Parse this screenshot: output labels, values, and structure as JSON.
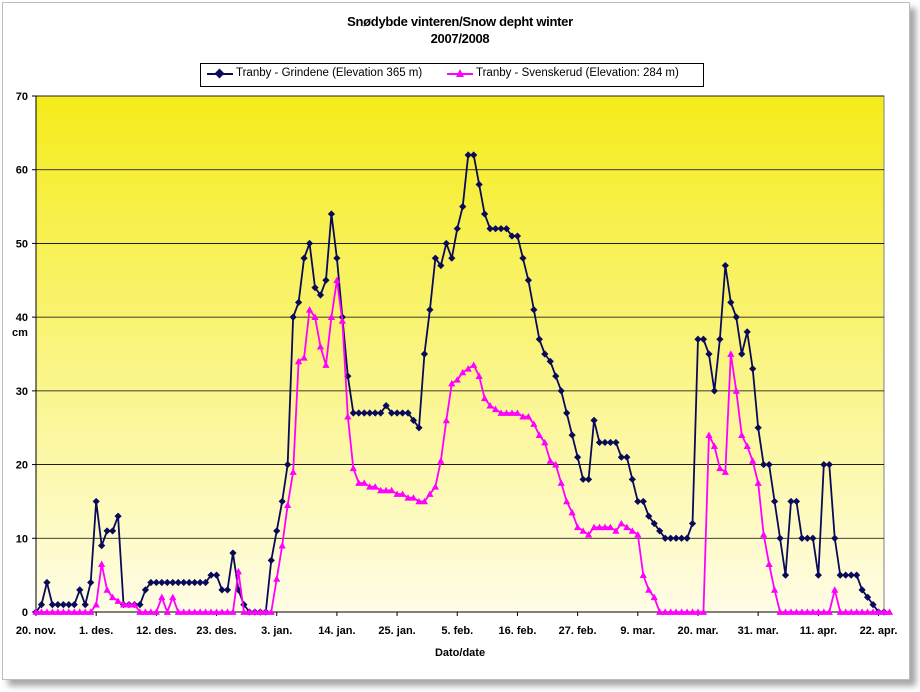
{
  "chart_data": {
    "type": "line",
    "title": "Snødybde vinteren/Snow depht winter",
    "subtitle": "2007/2008",
    "xlabel": "Dato/date",
    "ylabel": "cm",
    "ylim": [
      0,
      70
    ],
    "yticks": [
      0,
      10,
      20,
      30,
      40,
      50,
      60,
      70
    ],
    "xticks": [
      {
        "label": "20. nov.",
        "day": 0
      },
      {
        "label": "1. des.",
        "day": 11
      },
      {
        "label": "12. des.",
        "day": 22
      },
      {
        "label": "23. des.",
        "day": 33
      },
      {
        "label": "3. jan.",
        "day": 44
      },
      {
        "label": "14. jan.",
        "day": 55
      },
      {
        "label": "25. jan.",
        "day": 66
      },
      {
        "label": "5. feb.",
        "day": 77
      },
      {
        "label": "16. feb.",
        "day": 88
      },
      {
        "label": "27. feb.",
        "day": 99
      },
      {
        "label": "9. mar.",
        "day": 110
      },
      {
        "label": "20. mar.",
        "day": 121
      },
      {
        "label": "31. mar.",
        "day": 132
      },
      {
        "label": "11. apr.",
        "day": 143
      },
      {
        "label": "22. apr.",
        "day": 154
      }
    ],
    "grid": true,
    "legend_position": "top",
    "background_gradient": [
      "#f5ec1a",
      "#fffde6"
    ],
    "series": [
      {
        "name": "Tranby - Grindene (Elevation 365 m)",
        "color": "#0a0a5a",
        "marker": "diamond",
        "values": [
          0,
          1,
          4,
          1,
          1,
          1,
          1,
          1,
          3,
          1,
          4,
          15,
          9,
          11,
          11,
          13,
          1,
          1,
          1,
          1,
          3,
          4,
          4,
          4,
          4,
          4,
          4,
          4,
          4,
          4,
          4,
          4,
          5,
          5,
          3,
          3,
          8,
          3,
          1,
          0,
          0,
          0,
          0,
          7,
          11,
          15,
          20,
          40,
          42,
          48,
          50,
          44,
          43,
          45,
          54,
          48,
          40,
          32,
          27,
          27,
          27,
          27,
          27,
          27,
          28,
          27,
          27,
          27,
          27,
          26,
          25,
          35,
          41,
          48,
          47,
          50,
          48,
          52,
          55,
          62,
          62,
          58,
          54,
          52,
          52,
          52,
          52,
          51,
          51,
          48,
          45,
          41,
          37,
          35,
          34,
          32,
          30,
          27,
          24,
          21,
          18,
          18,
          26,
          23,
          23,
          23,
          23,
          21,
          21,
          18,
          15,
          15,
          13,
          12,
          11,
          10,
          10,
          10,
          10,
          10,
          12,
          37,
          37,
          35,
          30,
          37,
          47,
          42,
          40,
          35,
          38,
          33,
          25,
          20,
          20,
          15,
          10,
          5,
          15,
          15,
          10,
          10,
          10,
          5,
          20,
          20,
          10,
          5,
          5,
          5,
          5,
          3,
          2,
          1,
          0,
          0
        ]
      },
      {
        "name": "Tranby - Svenskerud (Elevation: 284 m)",
        "color": "#ff00ff",
        "marker": "triangle",
        "values": [
          0,
          0,
          0,
          0,
          0,
          0,
          0,
          0,
          0,
          0,
          0,
          1,
          6.5,
          3,
          2,
          1.5,
          1,
          1,
          1,
          0,
          0,
          0,
          0,
          2,
          0,
          2,
          0,
          0,
          0,
          0,
          0,
          0,
          0,
          0,
          0,
          0,
          0,
          5.5,
          0,
          0,
          0,
          0,
          0,
          0,
          4.5,
          9,
          14.5,
          19,
          34,
          34.5,
          41,
          40,
          36,
          33.5,
          40,
          45,
          39.5,
          26.5,
          19.5,
          17.5,
          17.5,
          17,
          17,
          16.5,
          16.5,
          16.5,
          16,
          16,
          15.5,
          15.5,
          15,
          15,
          16,
          17,
          20.5,
          26,
          31,
          31.5,
          32.5,
          33,
          33.5,
          32,
          29,
          28,
          27.5,
          27,
          27,
          27,
          27,
          26.5,
          26.5,
          25.5,
          24,
          23,
          20.5,
          20,
          17.5,
          15,
          13.5,
          11.5,
          11,
          10.5,
          11.5,
          11.5,
          11.5,
          11.5,
          11,
          12,
          11.5,
          11,
          10.5,
          5,
          3,
          2,
          0,
          0,
          0,
          0,
          0,
          0,
          0,
          0,
          0,
          24,
          22.5,
          19.5,
          19,
          35,
          30,
          24,
          22.5,
          20.5,
          17.5,
          10.5,
          6.5,
          3,
          0,
          0,
          0,
          0,
          0,
          0,
          0,
          0,
          0,
          0,
          3,
          0,
          0,
          0,
          0,
          0,
          0,
          0,
          0,
          0,
          0
        ]
      }
    ]
  }
}
